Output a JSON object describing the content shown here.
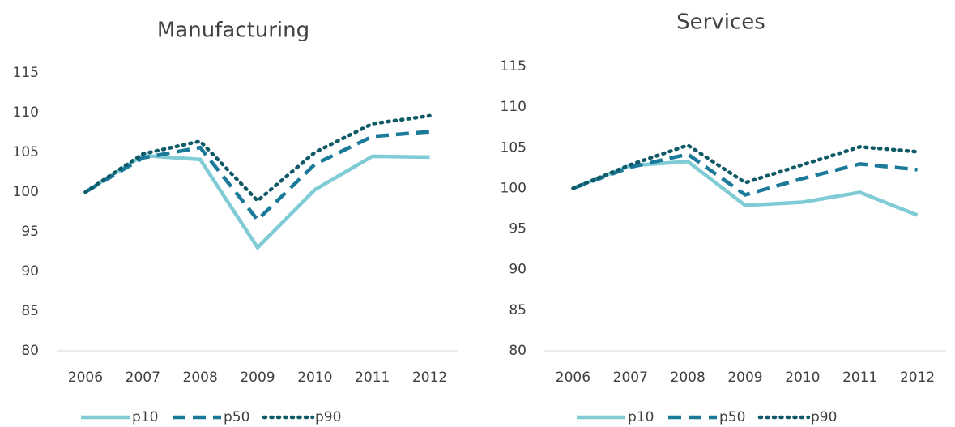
{
  "chart_data": [
    {
      "type": "line",
      "title": "Manufacturing",
      "categories": [
        "2006",
        "2007",
        "2008",
        "2009",
        "2010",
        "2011",
        "2012"
      ],
      "ylim": [
        80,
        115
      ],
      "yticks": [
        80,
        85,
        90,
        95,
        100,
        105,
        110,
        115
      ],
      "series": [
        {
          "name": "p10",
          "color": "#7fcbd6",
          "values": [
            100,
            104.6,
            104.1,
            93.0,
            100.3,
            104.5,
            104.4
          ]
        },
        {
          "name": "p50",
          "color": "#1b7a99",
          "values": [
            100,
            104.3,
            105.6,
            96.5,
            103.5,
            107.0,
            107.6
          ]
        },
        {
          "name": "p90",
          "color": "#0f5a66",
          "values": [
            100,
            104.8,
            106.4,
            98.9,
            105.0,
            108.6,
            109.6
          ]
        }
      ]
    },
    {
      "type": "line",
      "title": "Services",
      "categories": [
        "2006",
        "2007",
        "2008",
        "2009",
        "2010",
        "2011",
        "2012"
      ],
      "ylim": [
        80,
        115
      ],
      "yticks": [
        80,
        85,
        90,
        95,
        100,
        105,
        110,
        115
      ],
      "series": [
        {
          "name": "p10",
          "color": "#7fcbd6",
          "values": [
            100,
            102.8,
            103.3,
            97.9,
            98.3,
            99.5,
            96.7
          ]
        },
        {
          "name": "p50",
          "color": "#1b7a99",
          "values": [
            100,
            102.6,
            104.2,
            99.2,
            101.2,
            103.0,
            102.3
          ]
        },
        {
          "name": "p90",
          "color": "#0f5a66",
          "values": [
            100,
            102.9,
            105.3,
            100.7,
            102.9,
            105.1,
            104.5
          ]
        }
      ]
    }
  ]
}
